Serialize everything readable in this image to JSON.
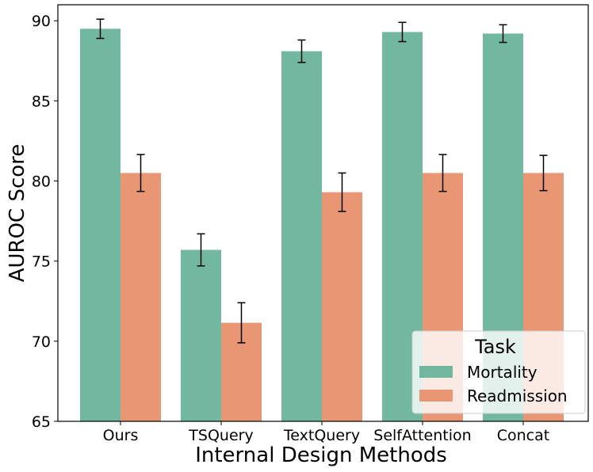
{
  "chart_data": {
    "type": "bar",
    "title": "",
    "xlabel": "Internal Design Methods",
    "ylabel": "AUROC Score",
    "categories": [
      "Ours",
      "TSQuery",
      "TextQuery",
      "SelfAttention",
      "Concat"
    ],
    "ylim": [
      65,
      91
    ],
    "yticks": [
      "65",
      "70",
      "75",
      "80",
      "85",
      "90"
    ],
    "grid": false,
    "legend": {
      "title": "Task",
      "position": "bottom-right"
    },
    "series": [
      {
        "name": "Mortality",
        "color": "#72b8a1",
        "values": [
          89.5,
          75.7,
          88.1,
          89.3,
          89.2
        ],
        "errors": [
          0.6,
          1.0,
          0.7,
          0.6,
          0.55
        ]
      },
      {
        "name": "Readmission",
        "color": "#e99675",
        "values": [
          80.5,
          71.15,
          79.3,
          80.5,
          80.5
        ],
        "errors": [
          1.15,
          1.25,
          1.2,
          1.15,
          1.1
        ]
      }
    ]
  }
}
